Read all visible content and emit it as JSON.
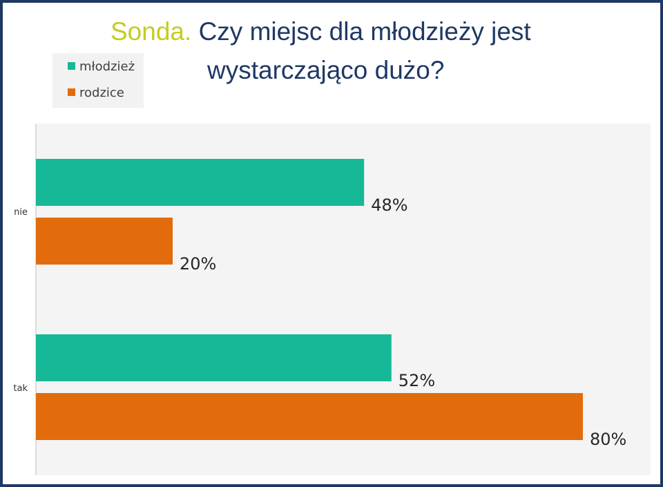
{
  "chart_data": {
    "type": "bar",
    "orientation": "horizontal",
    "title_lead": "Sonda.",
    "title_line1": "Czy miejsc dla młodzieży jest",
    "title_line2": "wystarczająco dużo?",
    "categories": [
      "nie",
      "tak"
    ],
    "series": [
      {
        "name": "młodzież",
        "values": [
          48,
          52
        ],
        "labels": [
          "48%",
          "52%"
        ],
        "color": "#17b897"
      },
      {
        "name": "rodzice",
        "values": [
          20,
          80
        ],
        "labels": [
          "20%",
          "80%"
        ],
        "color": "#e26c0c"
      }
    ],
    "unit": "%",
    "xlim": [
      0,
      90
    ],
    "grid": false,
    "legend_position": "top-left"
  },
  "colors": {
    "frame": "#1f3864",
    "title": "#1f3864",
    "title_lead": "#c5cc1f",
    "plot_background": "#f4f4f4"
  }
}
